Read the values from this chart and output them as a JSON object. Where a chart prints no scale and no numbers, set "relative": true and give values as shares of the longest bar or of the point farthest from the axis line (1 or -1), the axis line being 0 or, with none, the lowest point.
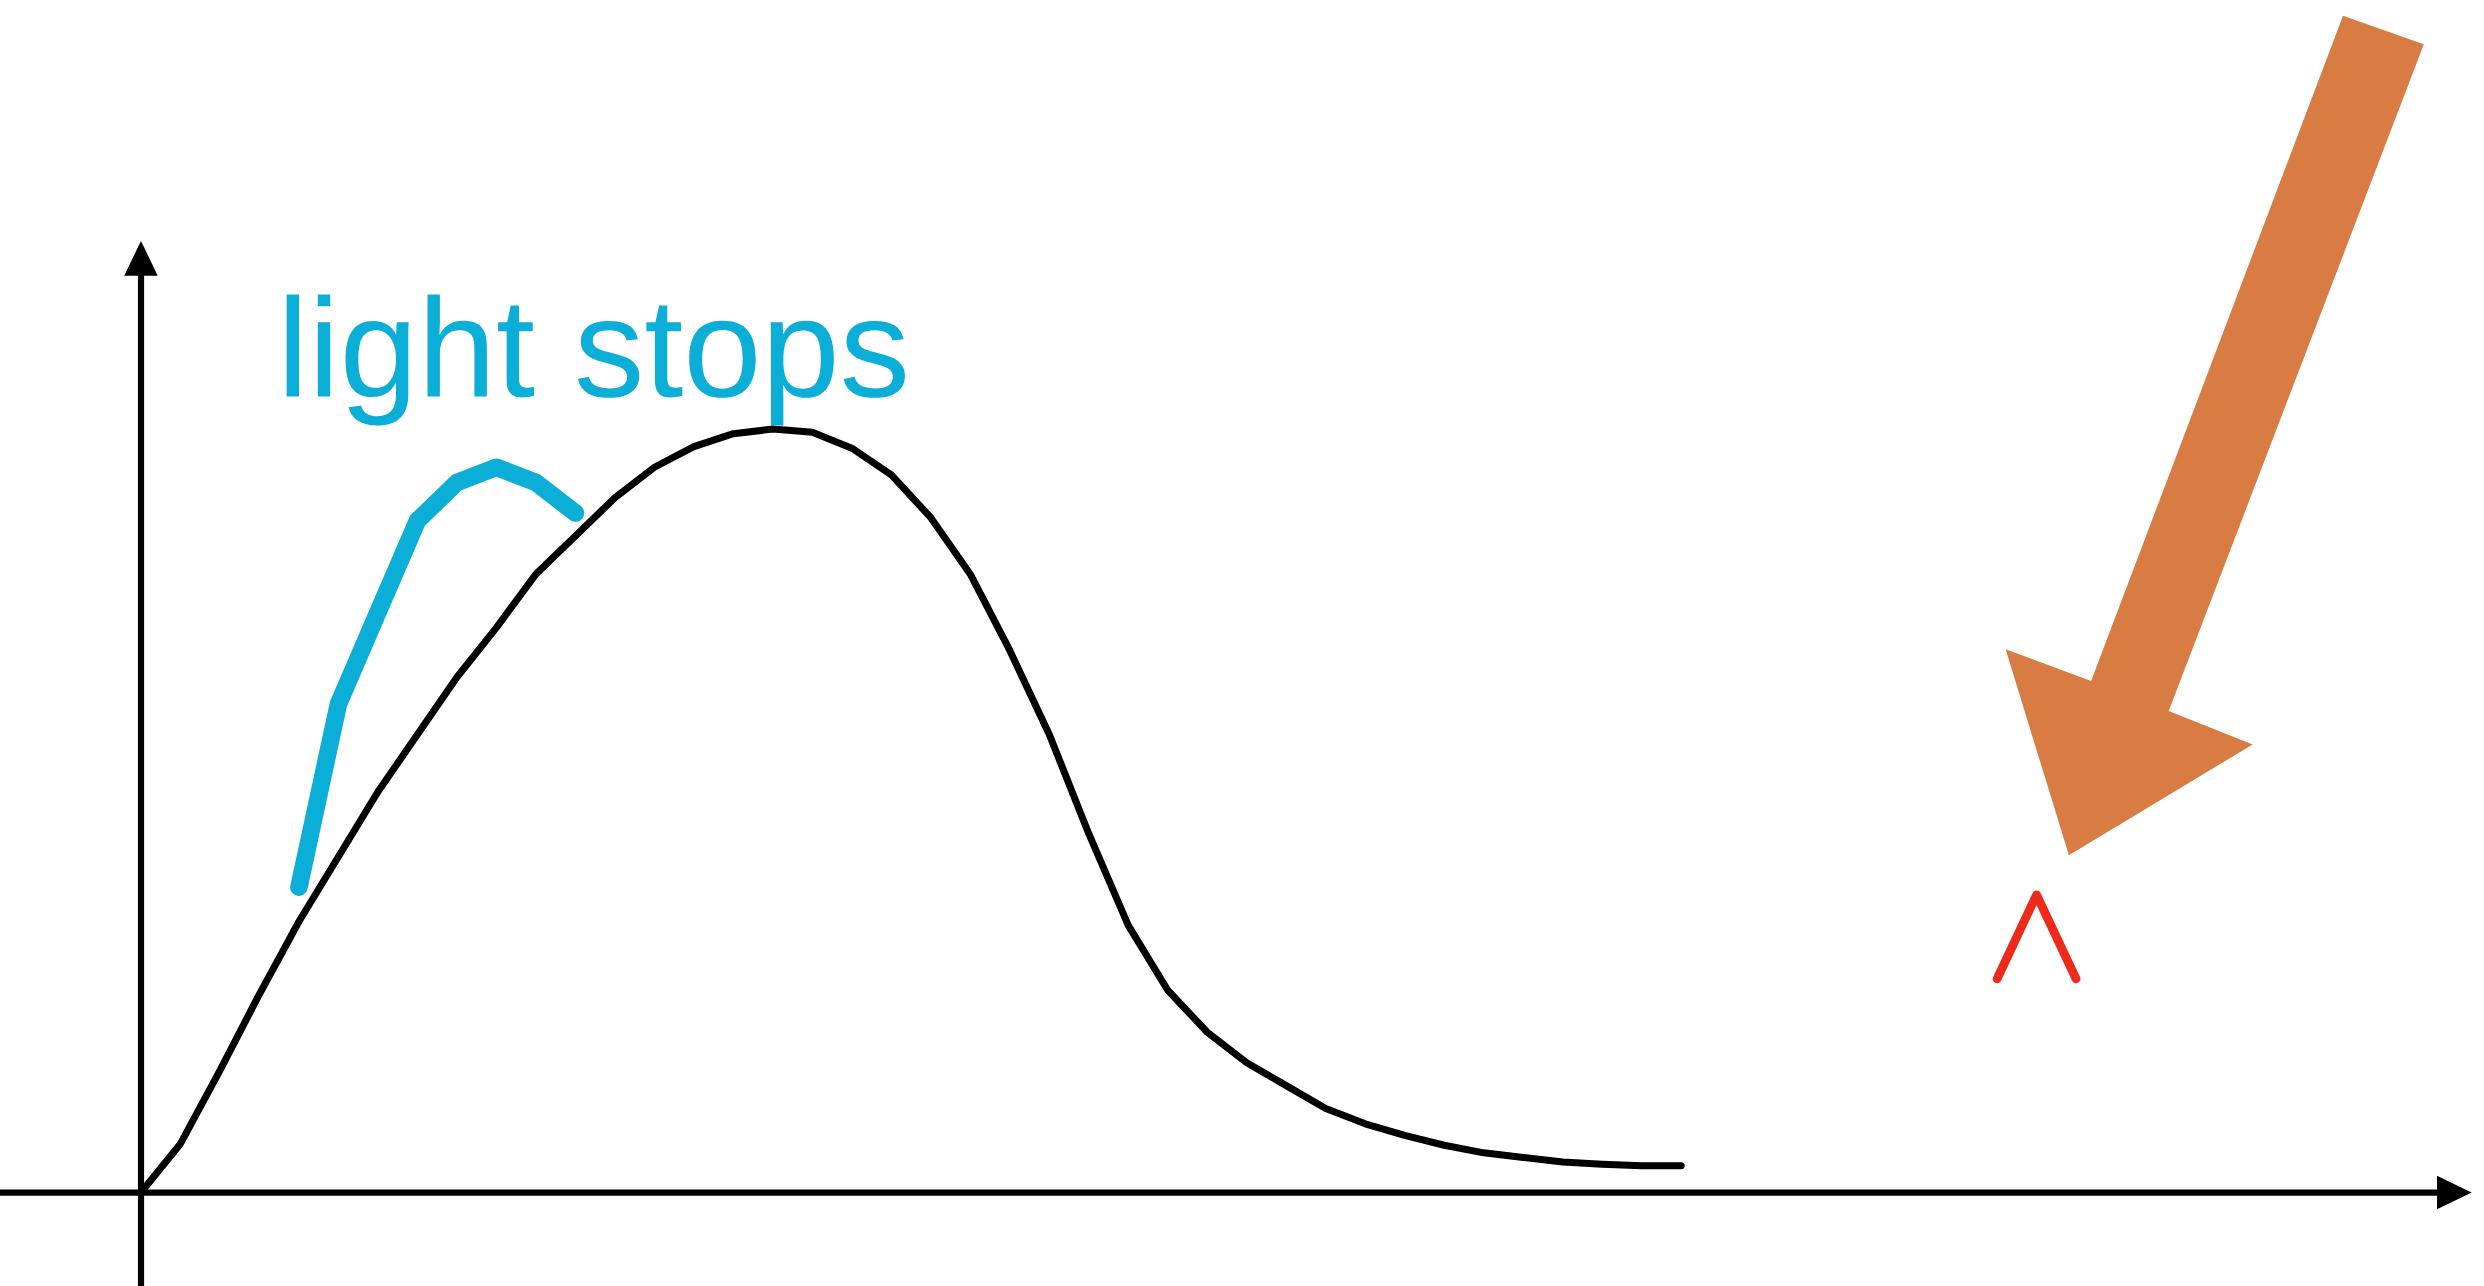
{
  "chart_data": {
    "type": "line",
    "relative": true,
    "categories": [
      null,
      null,
      null,
      null,
      null,
      null,
      null,
      null,
      null,
      null,
      null,
      null,
      null,
      null,
      null,
      null,
      null,
      null,
      null,
      null,
      null,
      null,
      null,
      null,
      null,
      null,
      null,
      null,
      null,
      null,
      null,
      null,
      null,
      null,
      null,
      null,
      null,
      null,
      null,
      null,
      null,
      null,
      null,
      null,
      null,
      null,
      null,
      null,
      null,
      null,
      null,
      null,
      null,
      null,
      null,
      null,
      null,
      null,
      null,
      null
    ],
    "series": [
      {
        "color": "#000000",
        "values": [
          0.0,
          0.064,
          0.16,
          0.26,
          0.355,
          0.44,
          0.525,
          0.6,
          0.675,
          0.74,
          0.81,
          0.86,
          0.91,
          0.95,
          0.977,
          0.994,
          1.0,
          0.996,
          0.975,
          0.94,
          0.884,
          0.81,
          0.71,
          0.6,
          0.47,
          0.35,
          0.265,
          0.21,
          0.17,
          0.14,
          0.11,
          0.09,
          0.075,
          0.062,
          0.052,
          0.046,
          0.04,
          0.037,
          0.035,
          0.035,
          null,
          null,
          null,
          null,
          null,
          null,
          null,
          null,
          null,
          null,
          null,
          null,
          null,
          null,
          null,
          null,
          null,
          null,
          null,
          null
        ]
      },
      {
        "color": "#0aaed6",
        "values": [
          null,
          null,
          null,
          null,
          0.4,
          0.64,
          0.76,
          0.88,
          0.93,
          0.95,
          0.93,
          0.89,
          null,
          null,
          null,
          null,
          null,
          null,
          null,
          null,
          null,
          null,
          null,
          null,
          null,
          null,
          null,
          null,
          null,
          null,
          null,
          null,
          null,
          null,
          null,
          null,
          null,
          null,
          null,
          null,
          null,
          null,
          null,
          null,
          null,
          null,
          null,
          null,
          null,
          null,
          null,
          null,
          null,
          null,
          null,
          null,
          null,
          null,
          null,
          null
        ]
      },
      {
        "color": "#ee2a1a",
        "values": [
          null,
          null,
          null,
          null,
          null,
          null,
          null,
          null,
          null,
          null,
          null,
          null,
          null,
          null,
          null,
          null,
          null,
          null,
          null,
          null,
          null,
          null,
          null,
          null,
          null,
          null,
          null,
          null,
          null,
          null,
          null,
          null,
          null,
          null,
          null,
          null,
          null,
          null,
          null,
          null,
          null,
          null,
          null,
          null,
          null,
          null,
          null,
          0.28,
          0.39,
          0.28,
          null,
          null,
          null,
          null,
          null,
          null,
          null,
          null,
          null,
          null
        ]
      }
    ],
    "annotations": [
      "light stops"
    ]
  }
}
